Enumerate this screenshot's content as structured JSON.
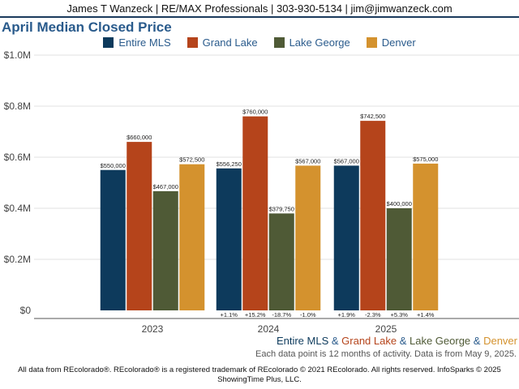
{
  "header": {
    "text": "James T Wanzeck | RE/MAX Professionals | 303-930-5134 | jim@jimwanzeck.com"
  },
  "colors": {
    "entire": "#0d3a5c",
    "grand": "#b5441b",
    "george": "#4f5a36",
    "denver": "#d4922e",
    "title": "#2a5b8c"
  },
  "chart_data": {
    "type": "bar",
    "title": "April Median Closed Price",
    "categories": [
      "2023",
      "2024",
      "2025"
    ],
    "ylim": [
      0,
      1000000
    ],
    "y_ticks": [
      "$0",
      "$0.2M",
      "$0.4M",
      "$0.6M",
      "$0.8M",
      "$1.0M"
    ],
    "grid": true,
    "legend_position": "top-center",
    "series": [
      {
        "name": "Entire MLS",
        "color": "#0d3a5c",
        "values": [
          550000,
          556250,
          567000
        ],
        "labels": [
          "$550,000",
          "$556,250",
          "$567,000"
        ],
        "changes": [
          "",
          "+1.1%",
          "+1.9%"
        ]
      },
      {
        "name": "Grand Lake",
        "color": "#b5441b",
        "values": [
          660000,
          760000,
          742500
        ],
        "labels": [
          "$660,000",
          "$760,000",
          "$742,500"
        ],
        "changes": [
          "",
          "+15.2%",
          "-2.3%"
        ]
      },
      {
        "name": "Lake George",
        "color": "#4f5a36",
        "values": [
          467000,
          379750,
          400000
        ],
        "labels": [
          "$467,000",
          "$379,750",
          "$400,000"
        ],
        "changes": [
          "",
          "-18.7%",
          "+5.3%"
        ]
      },
      {
        "name": "Denver",
        "color": "#d4922e",
        "values": [
          572500,
          567000,
          575000
        ],
        "labels": [
          "$572,500",
          "$567,000",
          "$575,000"
        ],
        "changes": [
          "",
          "-1.0%",
          "+1.4%"
        ]
      }
    ]
  },
  "footer": {
    "series_names": [
      "Entire MLS",
      "Grand Lake",
      "Lake George",
      "Denver"
    ],
    "separator": " & ",
    "note": "Each data point is 12 months of activity. Data is from May 9, 2025.",
    "copyright_line1": "All data from REcolorado®. REcolorado® is a registered trademark of REcolorado © 2021 REcolorado. All rights reserved. InfoSparks © 2025",
    "copyright_line2": "ShowingTime Plus, LLC."
  }
}
